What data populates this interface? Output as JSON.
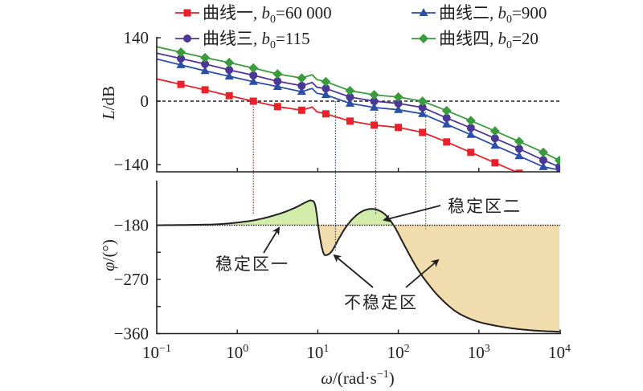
{
  "chart_data": [
    {
      "type": "line",
      "panel": "magnitude",
      "title": "",
      "xlabel": "ω/(rad·s⁻¹)",
      "ylabel": "L/dB",
      "xscale": "log",
      "xlim": [
        0.1,
        10000
      ],
      "ylim": [
        -155,
        150
      ],
      "yticks": [
        140,
        0,
        -140
      ],
      "ytick_labels": [
        "140",
        "0",
        "−140"
      ],
      "reference_line": {
        "y": 0,
        "style": "dashed"
      },
      "legend": {
        "placement": "top",
        "columns": 2
      },
      "x_log10": [
        -0.7,
        -0.4,
        -0.1,
        0.2,
        0.5,
        0.8,
        1.1,
        1.4,
        1.7,
        2.0,
        2.3,
        2.6,
        2.9,
        3.2,
        3.5,
        3.8,
        4.0
      ],
      "series": [
        {
          "name": "曲线一",
          "param": "b0=60 000",
          "label_prefix": "曲线一, ",
          "b_label": "b",
          "sub": "0",
          "value": "=60 000",
          "color": "#e8212b",
          "marker": "square",
          "values": [
            37,
            25,
            12,
            0,
            -12,
            -20,
            -28,
            -44,
            -53,
            -58,
            -69,
            -90,
            -113,
            -136,
            -159,
            null,
            null
          ]
        },
        {
          "name": "曲线二",
          "param": "b0=900",
          "label_prefix": "曲线二, ",
          "b_label": "b",
          "sub": "0",
          "value": "=900",
          "color": "#2b4ea8",
          "marker": "triangle",
          "values": [
            80,
            67,
            55,
            43,
            32,
            21,
            14,
            -5,
            -14,
            -19,
            -28,
            -51,
            -74,
            -98,
            -121,
            -145,
            -152
          ]
        },
        {
          "name": "曲线三",
          "param": "b0=115",
          "label_prefix": "曲线三, ",
          "b_label": "b",
          "sub": "0",
          "value": "=115",
          "color": "#4b3795",
          "marker": "circle",
          "values": [
            94,
            82,
            69,
            57,
            44,
            34,
            28,
            9,
            0,
            -5,
            -14,
            -37,
            -59,
            -82,
            -105,
            -130,
            -145
          ]
        },
        {
          "name": "曲线四",
          "param": "b0=20",
          "label_prefix": "曲线四, ",
          "b_label": "b",
          "sub": "0",
          "value": "=20",
          "color": "#3a9a3c",
          "marker": "diamond",
          "values": [
            108,
            96,
            85,
            73,
            60,
            51,
            43,
            23,
            14,
            9,
            0,
            -21,
            -43,
            -66,
            -89,
            -113,
            -131
          ]
        }
      ],
      "crossover_markers": [
        {
          "series": "曲线一",
          "omega_log10": 0.2,
          "color": "#e8212b"
        },
        {
          "series": "曲线二",
          "omega_log10": 1.22,
          "color": "#2b4ea8"
        },
        {
          "series": "曲线三",
          "omega_log10": 1.72,
          "color": "#4b3795"
        },
        {
          "series": "曲线四",
          "omega_log10": 2.34,
          "color": "#3a9a3c"
        }
      ]
    },
    {
      "type": "area",
      "panel": "phase",
      "xlabel": "ω/(rad·s⁻¹)",
      "ylabel": "φ/(°)",
      "xscale": "log",
      "xlim": [
        0.1,
        10000
      ],
      "xticks_log10": [
        -1,
        0,
        1,
        2,
        3,
        4
      ],
      "xtick_labels": [
        {
          "base": "10",
          "exp": "−1"
        },
        {
          "base": "10",
          "exp": "0"
        },
        {
          "base": "10",
          "exp": "1"
        },
        {
          "base": "10",
          "exp": "2"
        },
        {
          "base": "10",
          "exp": "3"
        },
        {
          "base": "10",
          "exp": "4"
        }
      ],
      "ylim": [
        -360,
        -120
      ],
      "yticks": [
        -180,
        -270,
        -360
      ],
      "ytick_labels": [
        "−180",
        "−270",
        "−360"
      ],
      "reference_line": {
        "y": -180,
        "style": "dotted"
      },
      "phase_curve": {
        "x_log10": [
          -1.0,
          -0.6,
          -0.2,
          0.2,
          0.5,
          0.7,
          0.85,
          0.92,
          0.97,
          1.02,
          1.07,
          1.12,
          1.18,
          1.25,
          1.35,
          1.45,
          1.55,
          1.65,
          1.75,
          1.85,
          1.95,
          2.05,
          2.15,
          2.25,
          2.35,
          2.5,
          2.7,
          2.9,
          3.1,
          3.4,
          3.7,
          4.0
        ],
        "values": [
          -180,
          -179.5,
          -178,
          -172,
          -162,
          -152,
          -142,
          -139,
          -148,
          -195,
          -226,
          -229,
          -222,
          -205,
          -183,
          -167,
          -157,
          -153,
          -155,
          -164,
          -182,
          -207,
          -232,
          -255,
          -274,
          -298,
          -322,
          -336,
          -344,
          -351,
          -355,
          -357
        ]
      },
      "fill_colors": {
        "stable": "#d2ecaa",
        "unstable": "#f1dcae"
      },
      "annotations": [
        {
          "text": "稳定区一",
          "kind": "stable"
        },
        {
          "text": "稳定区二",
          "kind": "stable"
        },
        {
          "text": "不稳定区",
          "kind": "unstable"
        }
      ]
    }
  ],
  "axis_labels": {
    "magnitude_y": {
      "italic": "L",
      "rest": "/dB"
    },
    "phase_y": {
      "italic": "φ",
      "rest": "/(°)"
    },
    "x": {
      "italic": "ω",
      "rest": "/(rad·s",
      "sup": "−1",
      "close": ")"
    }
  }
}
